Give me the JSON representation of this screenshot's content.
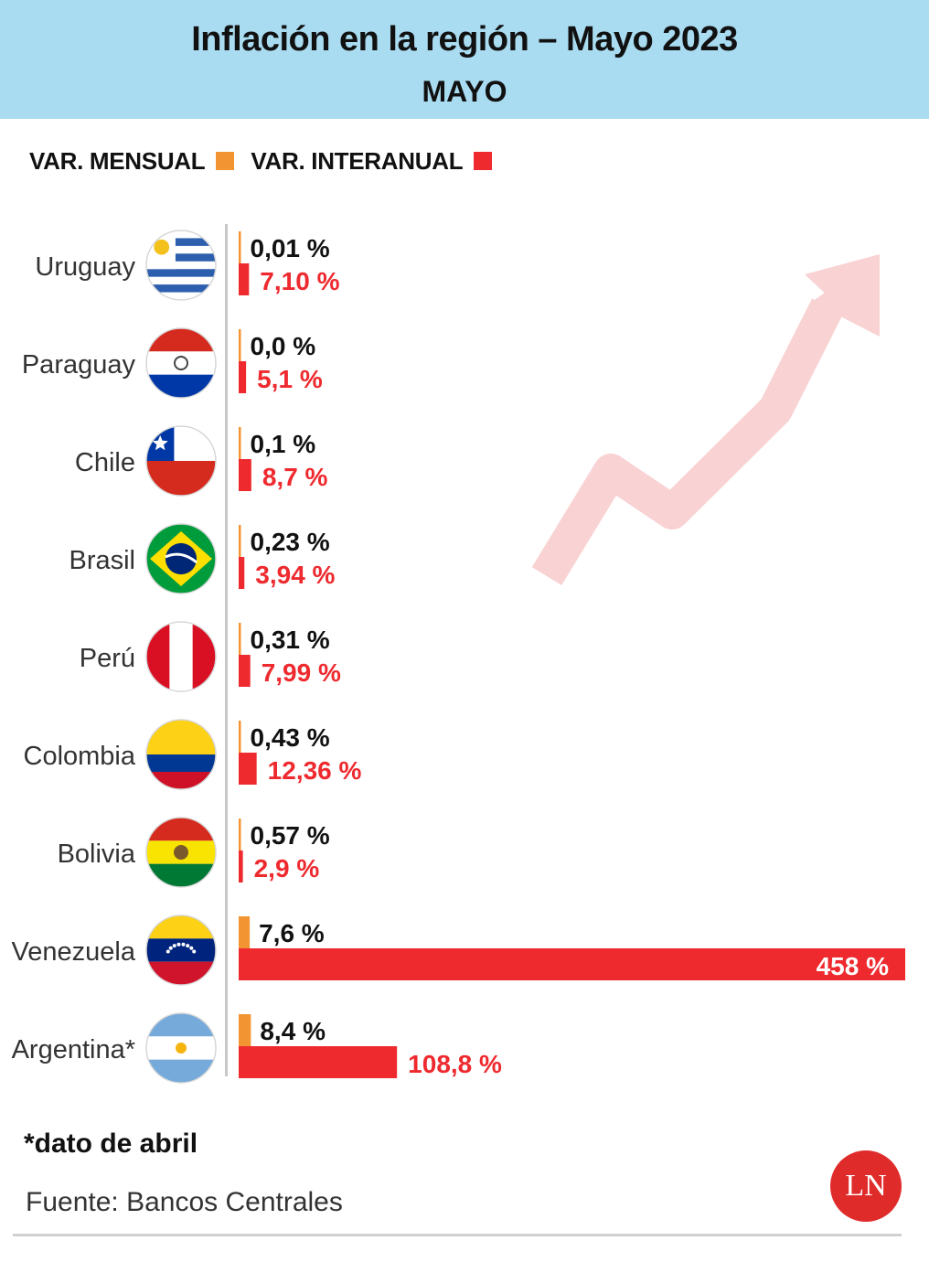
{
  "header": {
    "title": "Inflación en la región – Mayo 2023",
    "subtitle": "MAYO"
  },
  "legend": {
    "monthly_label": "VAR. MENSUAL",
    "yearly_label": "VAR. INTERANUAL"
  },
  "colors": {
    "monthly": "#f39433",
    "yearly": "#ee2a2f",
    "header_bg": "#a9dcf1",
    "arrow": "#f9d2d3"
  },
  "chart_data": {
    "type": "bar",
    "orientation": "horizontal",
    "categories": [
      "Uruguay",
      "Paraguay",
      "Chile",
      "Brasil",
      "Perú",
      "Colombia",
      "Bolivia",
      "Venezuela",
      "Argentina*"
    ],
    "series": [
      {
        "name": "VAR. MENSUAL",
        "values": [
          0.01,
          0.0,
          0.1,
          0.23,
          0.31,
          0.43,
          0.57,
          7.6,
          8.4
        ],
        "labels": [
          "0,01 %",
          "0,0 %",
          "0,1 %",
          "0,23 %",
          "0,31 %",
          "0,43 %",
          "0,57 %",
          "7,6 %",
          "8,4 %"
        ]
      },
      {
        "name": "VAR. INTERANUAL",
        "values": [
          7.1,
          5.1,
          8.7,
          3.94,
          7.99,
          12.36,
          2.9,
          458,
          108.8
        ],
        "labels": [
          "7,10 %",
          "5,1 %",
          "8,7 %",
          "3,94 %",
          "7,99 %",
          "12,36 %",
          "2,9 %",
          "458 %",
          "108,8 %"
        ]
      }
    ],
    "flags": [
      "uruguay-flag-icon",
      "paraguay-flag-icon",
      "chile-flag-icon",
      "brazil-flag-icon",
      "peru-flag-icon",
      "colombia-flag-icon",
      "bolivia-flag-icon",
      "venezuela-flag-icon",
      "argentina-flag-icon"
    ],
    "legend_position": "top-left",
    "grid": false
  },
  "footer": {
    "footnote": "*dato de abril",
    "source": "Fuente: Bancos Centrales",
    "logo": "LN"
  }
}
